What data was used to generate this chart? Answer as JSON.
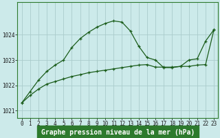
{
  "title": "Graphe pression niveau de la mer (hPa)",
  "background_color": "#cceaea",
  "grid_color": "#aacccc",
  "line_color": "#1a5c1a",
  "border_color": "#2d7a2d",
  "xlim": [
    -0.5,
    23.5
  ],
  "ylim": [
    1020.7,
    1025.3
  ],
  "yticks": [
    1021,
    1022,
    1023,
    1024
  ],
  "xtick_labels": [
    "0",
    "1",
    "2",
    "3",
    "4",
    "5",
    "6",
    "7",
    "8",
    "9",
    "10",
    "11",
    "12",
    "13",
    "14",
    "15",
    "16",
    "17",
    "18",
    "19",
    "20",
    "21",
    "22",
    "23"
  ],
  "series1_x": [
    0,
    1,
    2,
    3,
    4,
    5,
    6,
    7,
    8,
    9,
    10,
    11,
    12,
    13,
    14,
    15,
    16,
    17,
    18,
    19,
    20,
    21,
    22,
    23
  ],
  "series1_y": [
    1021.3,
    1021.75,
    1022.2,
    1022.55,
    1022.8,
    1023.0,
    1023.5,
    1023.85,
    1024.1,
    1024.3,
    1024.45,
    1024.55,
    1024.5,
    1024.15,
    1023.55,
    1023.1,
    1023.0,
    1022.7,
    1022.7,
    1022.75,
    1023.0,
    1023.05,
    1023.75,
    1024.2
  ],
  "series2_x": [
    0,
    1,
    2,
    3,
    4,
    5,
    6,
    7,
    8,
    9,
    10,
    11,
    12,
    13,
    14,
    15,
    16,
    17,
    18,
    19,
    20,
    21,
    22,
    23
  ],
  "series2_y": [
    1021.3,
    1021.6,
    1021.85,
    1022.05,
    1022.15,
    1022.25,
    1022.35,
    1022.42,
    1022.5,
    1022.55,
    1022.6,
    1022.65,
    1022.7,
    1022.75,
    1022.8,
    1022.82,
    1022.72,
    1022.72,
    1022.72,
    1022.75,
    1022.75,
    1022.8,
    1022.82,
    1024.2
  ],
  "bottom_bg_color": "#2d7a2d",
  "bottom_text_color": "#ffffff",
  "title_fontsize": 7.0,
  "tick_fontsize": 5.5
}
